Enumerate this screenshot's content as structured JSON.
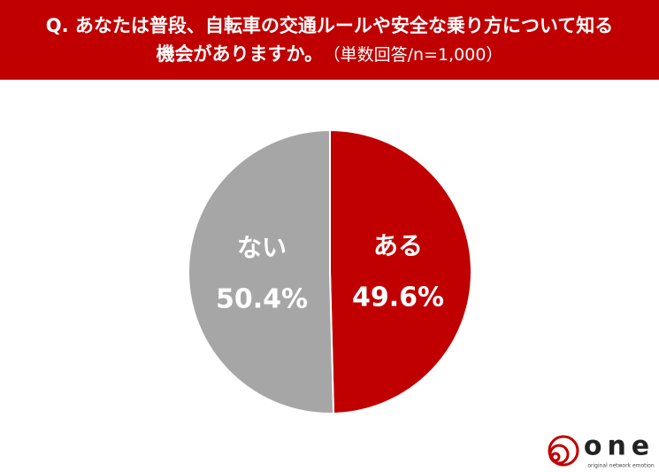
{
  "chart_data": {
    "type": "pie",
    "title": "Q. あなたは普段、自転車の交通ルールや安全な乗り方について知る機会がありますか。",
    "subtitle": "（単数回答/n=1,000）",
    "categories": [
      "ある",
      "ない"
    ],
    "values": [
      49.6,
      50.4
    ],
    "value_labels": [
      "49.6%",
      "50.4%"
    ],
    "colors": [
      "#c00000",
      "#a6a6a6"
    ]
  },
  "logo": {
    "name": "one",
    "tagline": "original network emotion"
  }
}
